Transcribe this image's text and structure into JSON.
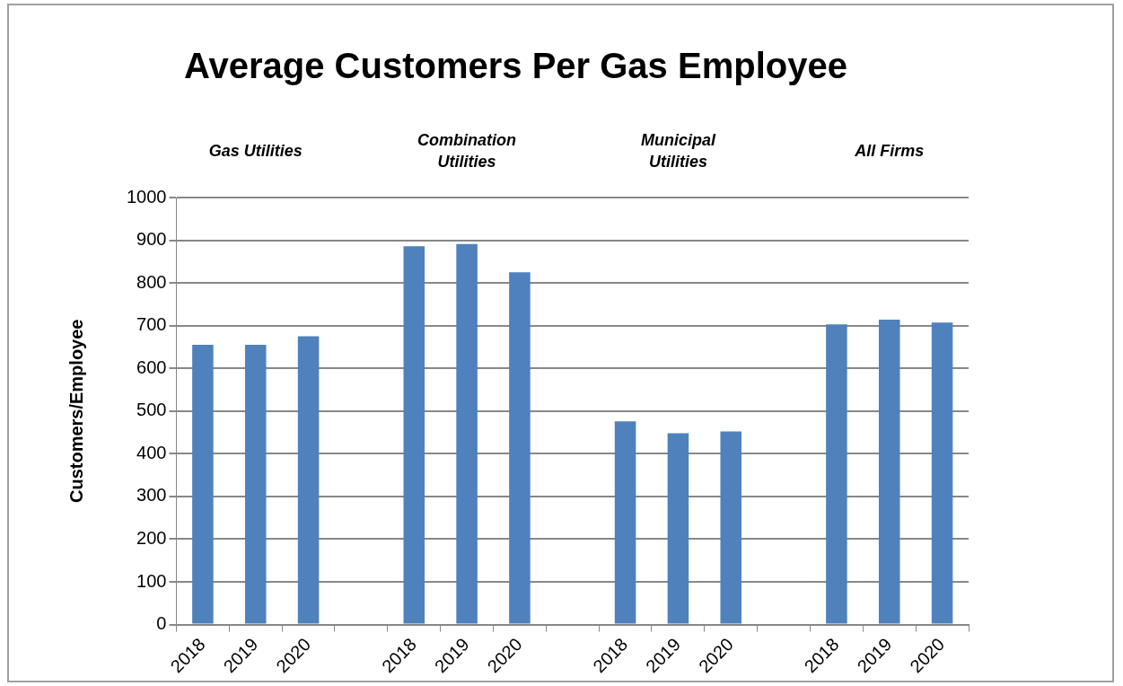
{
  "chart_data": {
    "type": "bar",
    "title": "Average Customers Per Gas Employee",
    "ylabel": "Customers/Employee",
    "categories": [
      "2018",
      "2019",
      "2020",
      null,
      "2018",
      "2019",
      "2020",
      null,
      "2018",
      "2019",
      "2020",
      null,
      "2018",
      "2019",
      "2020"
    ],
    "values": [
      655,
      655,
      675,
      null,
      886,
      891,
      825,
      null,
      476,
      448,
      452,
      null,
      703,
      714,
      707
    ],
    "color": "#4f81bd",
    "ylim": [
      0,
      1000
    ],
    "yticks": [
      0,
      100,
      200,
      300,
      400,
      500,
      600,
      700,
      800,
      900,
      1000
    ],
    "grid": "y",
    "legend": false,
    "annotations": [
      "Gas Utilities",
      "Combination Utilities",
      "Municipal Utilities",
      "All Firms"
    ]
  }
}
